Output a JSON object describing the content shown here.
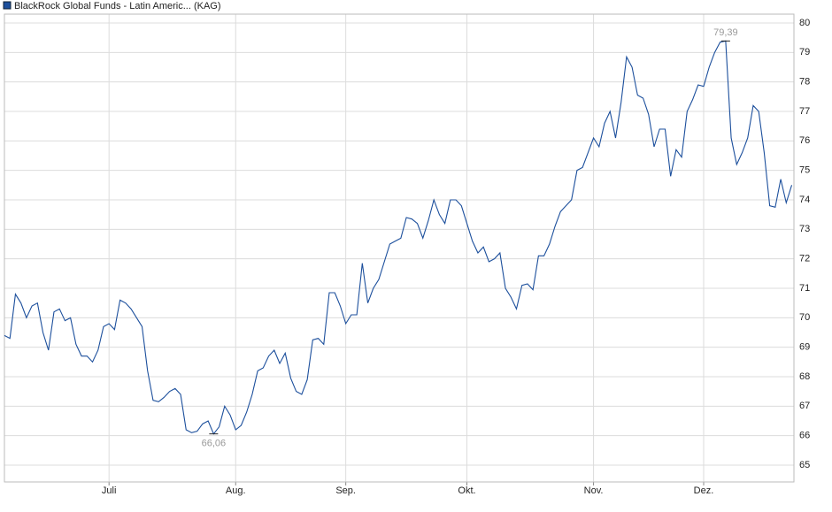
{
  "chart_data": {
    "type": "line",
    "series": [
      {
        "name": "BlackRock Global Funds - Latin Americ... (KAG)",
        "color": "#1c4f9c",
        "values": [
          69.4,
          69.3,
          70.8,
          70.5,
          70.0,
          70.4,
          70.5,
          69.5,
          68.9,
          70.2,
          70.3,
          69.9,
          70.0,
          69.1,
          68.7,
          68.7,
          68.5,
          68.9,
          69.7,
          69.8,
          69.6,
          70.6,
          70.5,
          70.3,
          70.0,
          69.7,
          68.2,
          67.2,
          67.15,
          67.3,
          67.5,
          67.6,
          67.4,
          66.2,
          66.1,
          66.15,
          66.4,
          66.5,
          66.06,
          66.3,
          67.0,
          66.7,
          66.2,
          66.35,
          66.8,
          67.4,
          68.2,
          68.3,
          68.7,
          68.9,
          68.45,
          68.8,
          67.95,
          67.5,
          67.4,
          67.9,
          69.25,
          69.3,
          69.1,
          70.85,
          70.85,
          70.4,
          69.8,
          70.1,
          70.1,
          71.85,
          70.5,
          71.0,
          71.3,
          71.9,
          72.5,
          72.6,
          72.7,
          73.4,
          73.35,
          73.2,
          72.7,
          73.3,
          74.0,
          73.5,
          73.2,
          74.0,
          74.0,
          73.8,
          73.2,
          72.6,
          72.2,
          72.4,
          71.9,
          72.0,
          72.2,
          71.0,
          70.7,
          70.3,
          71.1,
          71.15,
          70.95,
          72.1,
          72.1,
          72.5,
          73.1,
          73.6,
          73.8,
          74.0,
          75.0,
          75.1,
          75.6,
          76.1,
          75.8,
          76.6,
          77.0,
          76.1,
          77.3,
          78.85,
          78.5,
          77.55,
          77.45,
          76.9,
          75.8,
          76.4,
          76.4,
          74.8,
          75.7,
          75.45,
          77.0,
          77.4,
          77.9,
          77.85,
          78.5,
          79.0,
          79.35,
          79.39,
          76.1,
          75.2,
          75.6,
          76.1,
          77.2,
          77.0,
          75.6,
          73.8,
          73.75,
          74.7,
          73.9,
          74.5
        ],
        "value_labels": [
          null,
          null,
          null,
          null,
          null,
          null,
          null,
          null,
          null,
          null,
          null,
          null,
          null,
          null,
          null,
          null,
          null,
          null,
          null,
          null,
          null,
          null,
          null,
          null,
          null,
          null,
          null,
          null,
          null,
          null,
          null,
          null,
          null,
          null,
          null,
          null,
          null,
          null,
          "66,06",
          null,
          null,
          null,
          null,
          null,
          null,
          null,
          null,
          null,
          null,
          null,
          null,
          null,
          null,
          null,
          null,
          null,
          null,
          null,
          null,
          null,
          null,
          null,
          null,
          null,
          null,
          null,
          null,
          null,
          null,
          null,
          null,
          null,
          null,
          null,
          null,
          null,
          null,
          null,
          null,
          null,
          null,
          null,
          null,
          null,
          null,
          null,
          null,
          null,
          null,
          null,
          null,
          null,
          null,
          null,
          null,
          null,
          null,
          null,
          null,
          null,
          null,
          null,
          null,
          null,
          null,
          null,
          null,
          null,
          null,
          null,
          null,
          null,
          null,
          null,
          null,
          null,
          null,
          null,
          null,
          null,
          null,
          null,
          null,
          null,
          null,
          null,
          null,
          null,
          null,
          null,
          null,
          "79,39",
          null,
          null,
          null,
          null,
          null,
          null,
          null,
          null,
          null,
          null,
          null,
          null
        ]
      }
    ],
    "xlim": [
      0,
      143.4
    ],
    "xticks": [
      {
        "value": 19,
        "label": "Juli"
      },
      {
        "value": 42,
        "label": "Aug."
      },
      {
        "value": 62,
        "label": "Sep."
      },
      {
        "value": 84,
        "label": "Okt."
      },
      {
        "value": 107,
        "label": "Nov."
      },
      {
        "value": 127,
        "label": "Dez."
      }
    ],
    "ylim": [
      64.43,
      80.3
    ],
    "yticks": [
      65,
      66,
      67,
      68,
      69,
      70,
      71,
      72,
      73,
      74,
      75,
      76,
      77,
      78,
      79,
      80
    ],
    "grid": true
  }
}
